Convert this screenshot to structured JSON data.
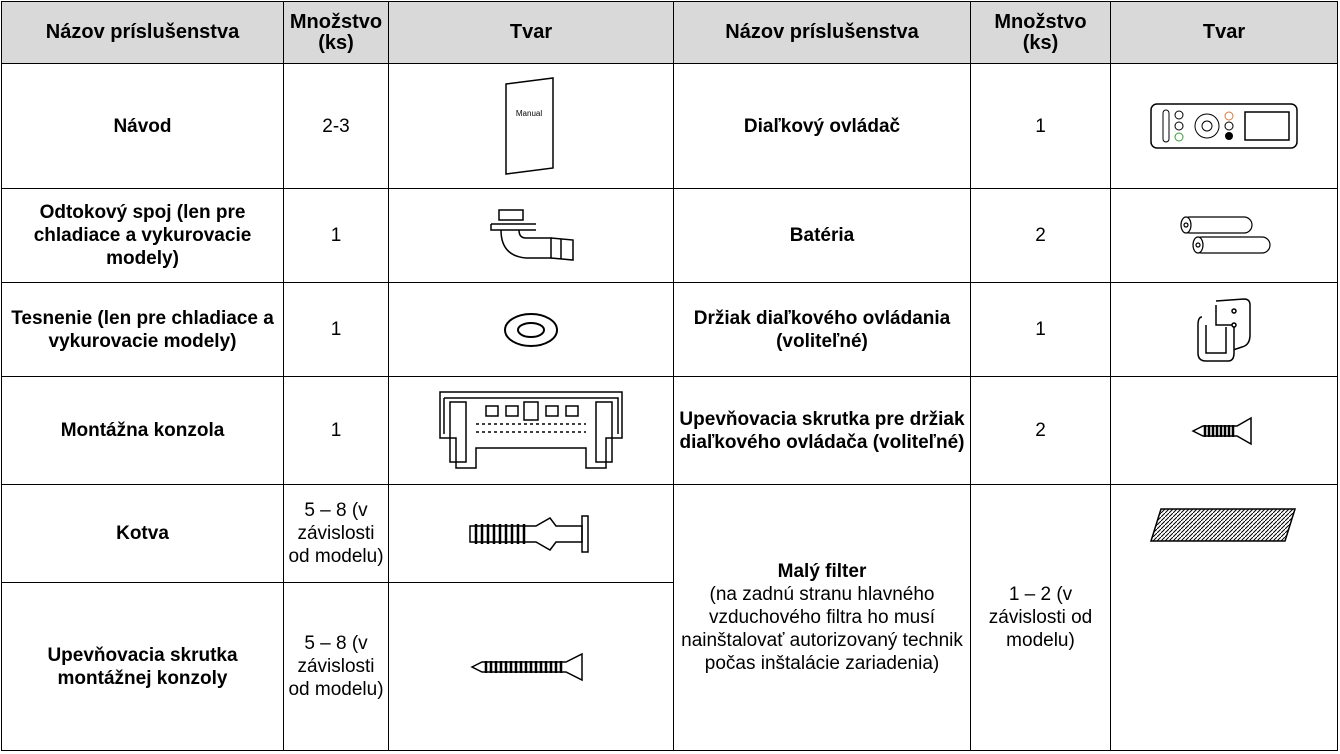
{
  "table": {
    "header": [
      "Názov príslušenstva",
      "Množstvo (ks)",
      "Tvar",
      "Názov príslušenstva",
      "Množstvo (ks)",
      "Tvar"
    ],
    "rows": [
      {
        "left": {
          "name": "Návod",
          "qty": "2-3",
          "icon_text": "Manual"
        },
        "right": {
          "name": "Diaľkový ovládač",
          "qty": "1"
        }
      },
      {
        "left": {
          "name": "Odtokový spoj (len pre chladiace a vykurovacie modely)",
          "qty": "1"
        },
        "right": {
          "name": "Batéria",
          "qty": "2"
        }
      },
      {
        "left": {
          "name": "Tesnenie (len pre chladiace a vykurovacie modely)",
          "qty": "1"
        },
        "right": {
          "name": "Držiak diaľkového ovládania (voliteľné)",
          "qty": "1"
        }
      },
      {
        "left": {
          "name": "Montážna konzola",
          "qty": "1"
        },
        "right": {
          "name": "Upevňovacia skrutka pre držiak diaľkového ovládača (voliteľné)",
          "qty": "2"
        }
      },
      {
        "left": {
          "name": "Kotva",
          "qty": "5 – 8 (v závislosti od modelu)"
        },
        "right": {
          "name": "Malý filter",
          "note": "(na zadnú stranu hlavného vzduchového filtra ho musí nainštalovať autorizovaný technik počas inštalácie zariadenia)",
          "qty": "1 – 2 (v závislosti od modelu)"
        }
      },
      {
        "left": {
          "name": "Upevňovacia skrutka montážnej konzoly",
          "qty": "5 – 8 (v závislosti od modelu)"
        }
      }
    ]
  }
}
